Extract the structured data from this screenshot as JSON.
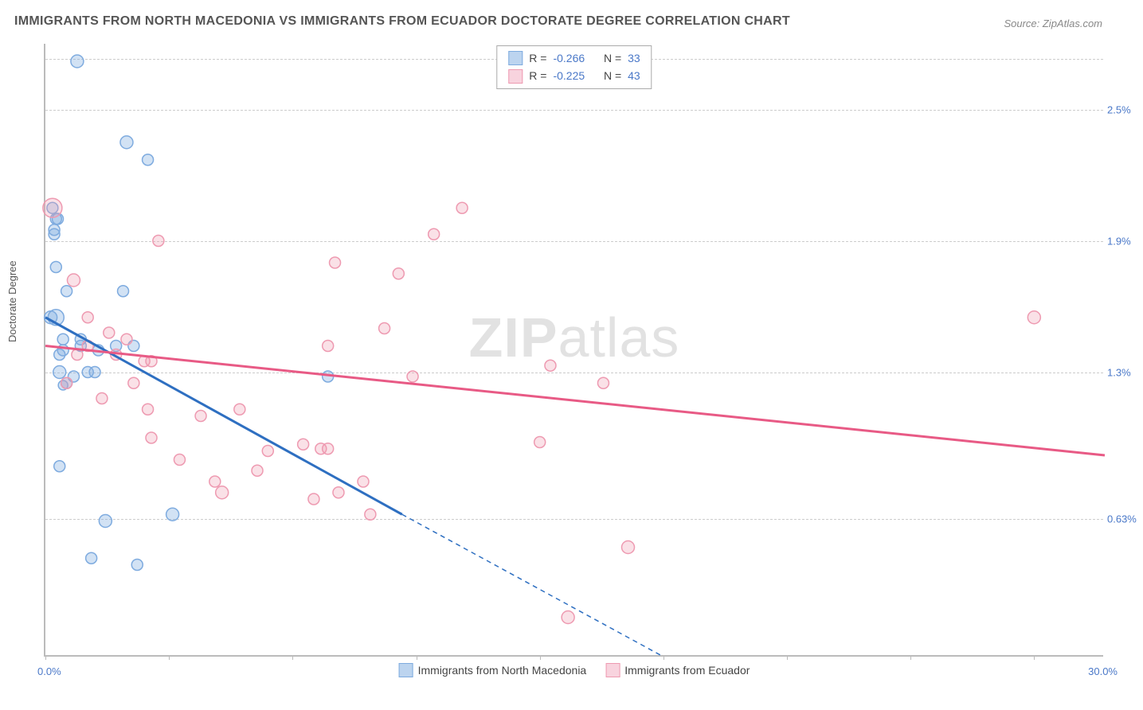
{
  "title": "IMMIGRANTS FROM NORTH MACEDONIA VS IMMIGRANTS FROM ECUADOR DOCTORATE DEGREE CORRELATION CHART",
  "source": "Source: ZipAtlas.com",
  "watermark": "ZIPatlas",
  "ylabel": "Doctorate Degree",
  "chart": {
    "type": "scatter",
    "background_color": "#ffffff",
    "grid_color": "#cccccc",
    "axis_color": "#bbbbbb",
    "tick_label_color": "#4a78c8",
    "xlim": [
      0.0,
      30.0
    ],
    "ylim": [
      0.0,
      2.8
    ],
    "x_ticks": [
      0,
      3.5,
      7,
      10.5,
      14,
      17.5,
      21,
      24.5,
      28
    ],
    "x_min_label": "0.0%",
    "x_max_label": "30.0%",
    "y_gridlines": [
      {
        "value": 0.63,
        "label": "0.63%"
      },
      {
        "value": 1.3,
        "label": "1.3%"
      },
      {
        "value": 1.9,
        "label": "1.9%"
      },
      {
        "value": 2.5,
        "label": "2.5%"
      },
      {
        "value": 2.73,
        "label": ""
      }
    ],
    "series": [
      {
        "name": "Immigrants from North Macedonia",
        "color_fill": "rgba(126,171,223,0.35)",
        "color_stroke": "#7eabdf",
        "swatch_fill": "#bcd4ef",
        "swatch_stroke": "#7eabdf",
        "regression": {
          "R": "-0.266",
          "N": "33",
          "color": "#2e6fc1",
          "x1": 0.0,
          "y1": 1.55,
          "x2_solid": 10.1,
          "y2_solid": 0.65,
          "x2_dash": 17.5,
          "y2_dash": 0.0
        },
        "points": [
          {
            "x": 0.4,
            "y": 1.3,
            "r": 8
          },
          {
            "x": 0.3,
            "y": 2.0,
            "r": 7
          },
          {
            "x": 0.25,
            "y": 1.95,
            "r": 7
          },
          {
            "x": 0.6,
            "y": 1.25,
            "r": 7
          },
          {
            "x": 0.6,
            "y": 1.67,
            "r": 7
          },
          {
            "x": 0.9,
            "y": 2.72,
            "r": 8
          },
          {
            "x": 2.3,
            "y": 2.35,
            "r": 8
          },
          {
            "x": 2.9,
            "y": 2.27,
            "r": 7
          },
          {
            "x": 1.2,
            "y": 1.3,
            "r": 7
          },
          {
            "x": 1.4,
            "y": 1.3,
            "r": 7
          },
          {
            "x": 0.5,
            "y": 1.45,
            "r": 7
          },
          {
            "x": 0.3,
            "y": 1.78,
            "r": 7
          },
          {
            "x": 0.2,
            "y": 2.05,
            "r": 7
          },
          {
            "x": 0.25,
            "y": 1.93,
            "r": 7
          },
          {
            "x": 0.5,
            "y": 1.24,
            "r": 6
          },
          {
            "x": 0.8,
            "y": 1.28,
            "r": 7
          },
          {
            "x": 2.2,
            "y": 1.67,
            "r": 7
          },
          {
            "x": 1.0,
            "y": 1.42,
            "r": 7
          },
          {
            "x": 1.3,
            "y": 0.45,
            "r": 7
          },
          {
            "x": 0.4,
            "y": 0.87,
            "r": 7
          },
          {
            "x": 2.6,
            "y": 0.42,
            "r": 7
          },
          {
            "x": 1.7,
            "y": 0.62,
            "r": 8
          },
          {
            "x": 2.0,
            "y": 1.42,
            "r": 7
          },
          {
            "x": 2.5,
            "y": 1.42,
            "r": 7
          },
          {
            "x": 8.0,
            "y": 1.28,
            "r": 7
          },
          {
            "x": 3.6,
            "y": 0.65,
            "r": 8
          },
          {
            "x": 0.15,
            "y": 1.55,
            "r": 8
          },
          {
            "x": 0.3,
            "y": 1.55,
            "r": 10
          },
          {
            "x": 1.0,
            "y": 1.45,
            "r": 7
          },
          {
            "x": 0.5,
            "y": 1.4,
            "r": 7
          },
          {
            "x": 1.5,
            "y": 1.4,
            "r": 7
          },
          {
            "x": 0.4,
            "y": 1.38,
            "r": 7
          },
          {
            "x": 0.35,
            "y": 2.0,
            "r": 7
          }
        ]
      },
      {
        "name": "Immigrants from Ecuador",
        "color_fill": "rgba(238,154,177,0.30)",
        "color_stroke": "#ee9ab1",
        "swatch_fill": "#f8d3de",
        "swatch_stroke": "#ee9ab1",
        "regression": {
          "R": "-0.225",
          "N": "43",
          "color": "#e85a85",
          "x1": 0.0,
          "y1": 1.42,
          "x2_solid": 30.0,
          "y2_solid": 0.92,
          "x2_dash": 30.0,
          "y2_dash": 0.92
        },
        "points": [
          {
            "x": 0.2,
            "y": 2.05,
            "r": 12
          },
          {
            "x": 0.8,
            "y": 1.72,
            "r": 8
          },
          {
            "x": 1.2,
            "y": 1.42,
            "r": 7
          },
          {
            "x": 1.8,
            "y": 1.48,
            "r": 7
          },
          {
            "x": 1.6,
            "y": 1.18,
            "r": 7
          },
          {
            "x": 2.3,
            "y": 1.45,
            "r": 7
          },
          {
            "x": 2.8,
            "y": 1.35,
            "r": 7
          },
          {
            "x": 3.2,
            "y": 1.9,
            "r": 7
          },
          {
            "x": 2.9,
            "y": 1.13,
            "r": 7
          },
          {
            "x": 3.0,
            "y": 1.35,
            "r": 7
          },
          {
            "x": 5.5,
            "y": 1.13,
            "r": 7
          },
          {
            "x": 4.4,
            "y": 1.1,
            "r": 7
          },
          {
            "x": 3.0,
            "y": 1.0,
            "r": 7
          },
          {
            "x": 3.8,
            "y": 0.9,
            "r": 7
          },
          {
            "x": 4.8,
            "y": 0.8,
            "r": 7
          },
          {
            "x": 5.0,
            "y": 0.75,
            "r": 8
          },
          {
            "x": 6.3,
            "y": 0.94,
            "r": 7
          },
          {
            "x": 6.0,
            "y": 0.85,
            "r": 7
          },
          {
            "x": 7.8,
            "y": 0.95,
            "r": 7
          },
          {
            "x": 7.6,
            "y": 0.72,
            "r": 7
          },
          {
            "x": 8.0,
            "y": 0.95,
            "r": 7
          },
          {
            "x": 8.2,
            "y": 1.8,
            "r": 7
          },
          {
            "x": 9.0,
            "y": 0.8,
            "r": 7
          },
          {
            "x": 9.2,
            "y": 0.65,
            "r": 7
          },
          {
            "x": 9.6,
            "y": 1.5,
            "r": 7
          },
          {
            "x": 10.0,
            "y": 1.75,
            "r": 7
          },
          {
            "x": 10.4,
            "y": 1.28,
            "r": 7
          },
          {
            "x": 11.0,
            "y": 1.93,
            "r": 7
          },
          {
            "x": 11.8,
            "y": 2.05,
            "r": 7
          },
          {
            "x": 7.3,
            "y": 0.97,
            "r": 7
          },
          {
            "x": 8.0,
            "y": 1.42,
            "r": 7
          },
          {
            "x": 8.3,
            "y": 0.75,
            "r": 7
          },
          {
            "x": 14.0,
            "y": 0.98,
            "r": 7
          },
          {
            "x": 14.3,
            "y": 1.33,
            "r": 7
          },
          {
            "x": 15.8,
            "y": 1.25,
            "r": 7
          },
          {
            "x": 16.5,
            "y": 0.5,
            "r": 8
          },
          {
            "x": 14.8,
            "y": 0.18,
            "r": 8
          },
          {
            "x": 28.0,
            "y": 1.55,
            "r": 8
          },
          {
            "x": 2.0,
            "y": 1.38,
            "r": 7
          },
          {
            "x": 2.5,
            "y": 1.25,
            "r": 7
          },
          {
            "x": 1.2,
            "y": 1.55,
            "r": 7
          },
          {
            "x": 0.9,
            "y": 1.38,
            "r": 7
          },
          {
            "x": 0.6,
            "y": 1.25,
            "r": 7
          }
        ]
      }
    ]
  },
  "legend_top": {
    "rows": [
      {
        "swatch": 0,
        "R_label": "R =",
        "R": "-0.266",
        "N_label": "N =",
        "N": "33"
      },
      {
        "swatch": 1,
        "R_label": "R =",
        "R": "-0.225",
        "N_label": "N =",
        "N": "43"
      }
    ]
  },
  "legend_bottom": {
    "items": [
      {
        "swatch": 0,
        "label": "Immigrants from North Macedonia"
      },
      {
        "swatch": 1,
        "label": "Immigrants from Ecuador"
      }
    ]
  }
}
